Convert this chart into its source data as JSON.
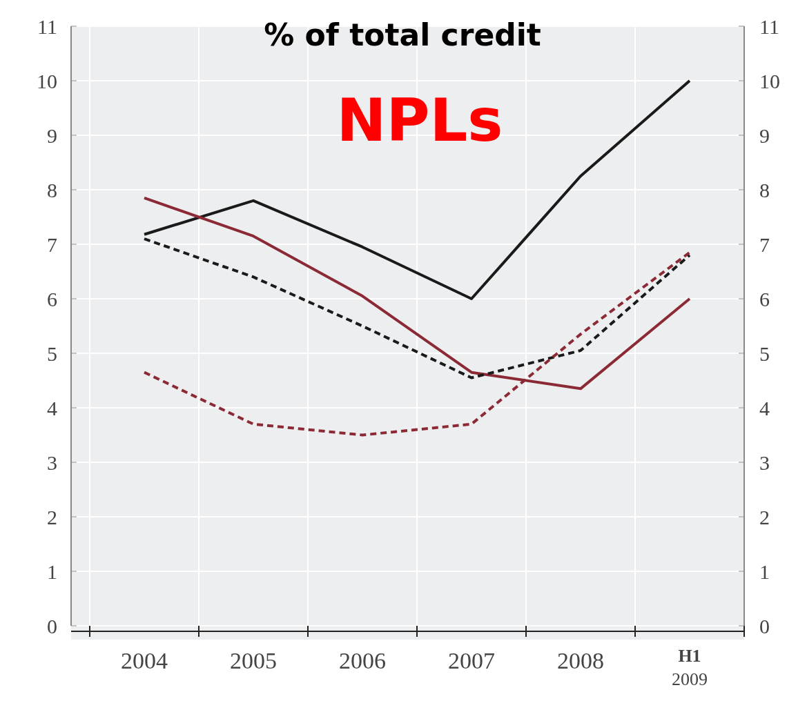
{
  "chart_data": {
    "type": "line",
    "title": "% of total credit",
    "subtitle": "NPLs",
    "categories": [
      "2004",
      "2005",
      "2006",
      "2007",
      "2008",
      "H1 2009"
    ],
    "series": [
      {
        "color": "#1a1a1a",
        "line_style": "solid",
        "values": [
          7.18,
          7.8,
          6.95,
          6.0,
          8.25,
          10.0
        ]
      },
      {
        "color": "#8b2a35",
        "line_style": "solid",
        "values": [
          7.85,
          7.15,
          6.05,
          4.65,
          4.35,
          6.0
        ]
      },
      {
        "color": "#1a1a1a",
        "line_style": "dashed",
        "values": [
          7.1,
          6.4,
          5.5,
          4.55,
          5.05,
          6.8
        ]
      },
      {
        "color": "#8b2a35",
        "line_style": "dashed",
        "values": [
          4.65,
          3.7,
          3.5,
          3.7,
          5.35,
          6.85
        ]
      }
    ],
    "ylim": [
      0,
      11
    ],
    "yticks": [
      0,
      1,
      2,
      3,
      4,
      5,
      6,
      7,
      8,
      9,
      10,
      11
    ],
    "y2lim": [
      0,
      11
    ],
    "y2ticks": [
      0,
      1,
      2,
      3,
      4,
      5,
      6,
      7,
      8,
      9,
      10,
      11
    ],
    "grid": true
  }
}
